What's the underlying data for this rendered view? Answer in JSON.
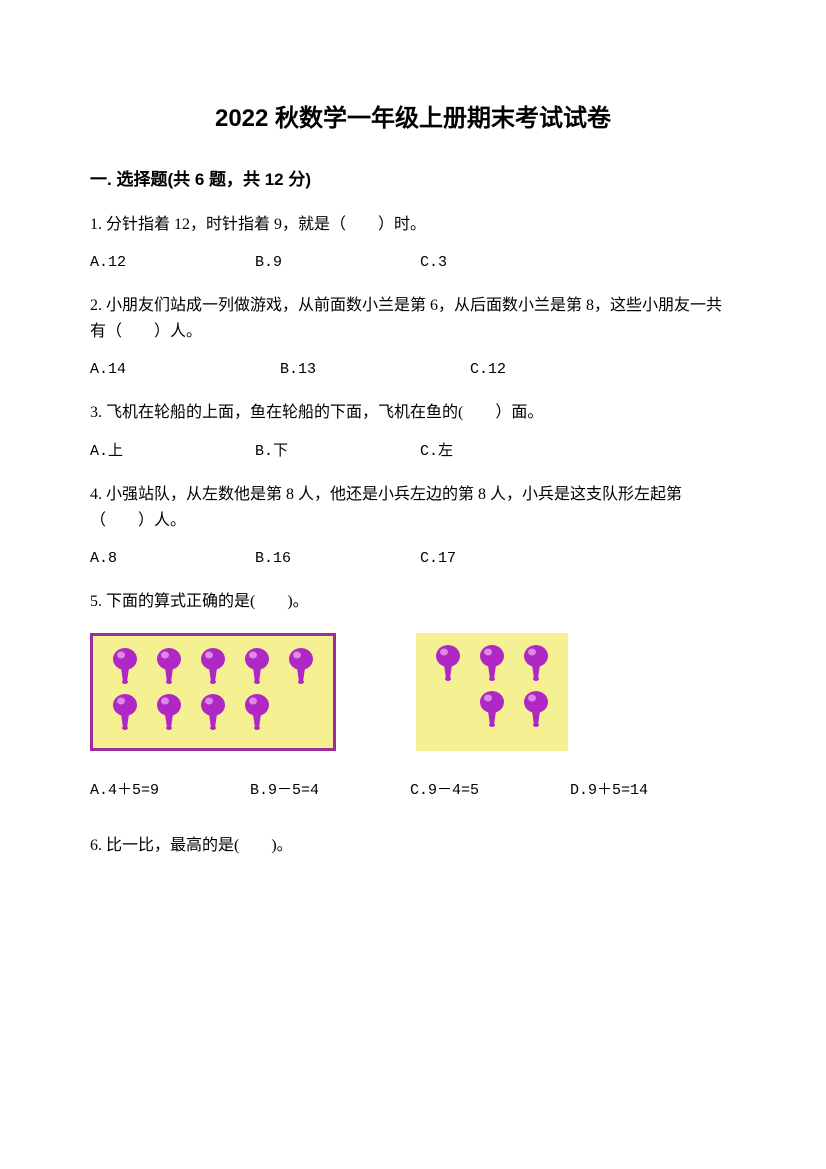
{
  "title": "2022 秋数学一年级上册期末考试试卷",
  "section1": {
    "header": "一. 选择题(共 6 题，共 12 分)",
    "q1": {
      "text": "1. 分针指着 12，时针指着 9，就是（　　）时。",
      "a": "A.12",
      "b": "B.9",
      "c": "C.3"
    },
    "q2": {
      "text": "2. 小朋友们站成一列做游戏，从前面数小兰是第 6，从后面数小兰是第 8，这些小朋友一共有（　　）人。",
      "a": "A.14",
      "b": "B.13",
      "c": "C.12"
    },
    "q3": {
      "text": "3. 飞机在轮船的上面，鱼在轮船的下面，飞机在鱼的(　　）面。",
      "a": "A.上",
      "b": "B.下",
      "c": "C.左"
    },
    "q4": {
      "text": "4. 小强站队，从左数他是第 8 人，他还是小兵左边的第 8 人，小兵是这支队形左起第（　　）人。",
      "a": "A.8",
      "b": "B.16",
      "c": "C.17"
    },
    "q5": {
      "text": "5. 下面的算式正确的是(　　)。",
      "a": "A.4＋5=9",
      "b": "B.9－5=4",
      "c": "C.9－4=5",
      "d": "D.9＋5=14"
    },
    "q6": {
      "text": "6. 比一比，最高的是(　　)。"
    }
  },
  "visual": {
    "pushpin_color": "#b028c4",
    "pushpin_highlight": "#e89ff0",
    "box_bg": "#f5f193",
    "box_border": "#9b2e9b",
    "left_box": {
      "row1_count": 5,
      "row2_count": 4,
      "bordered": true
    },
    "right_box": {
      "row1_count": 3,
      "row2_count": 2,
      "bordered": false,
      "row2_align": "right"
    }
  }
}
